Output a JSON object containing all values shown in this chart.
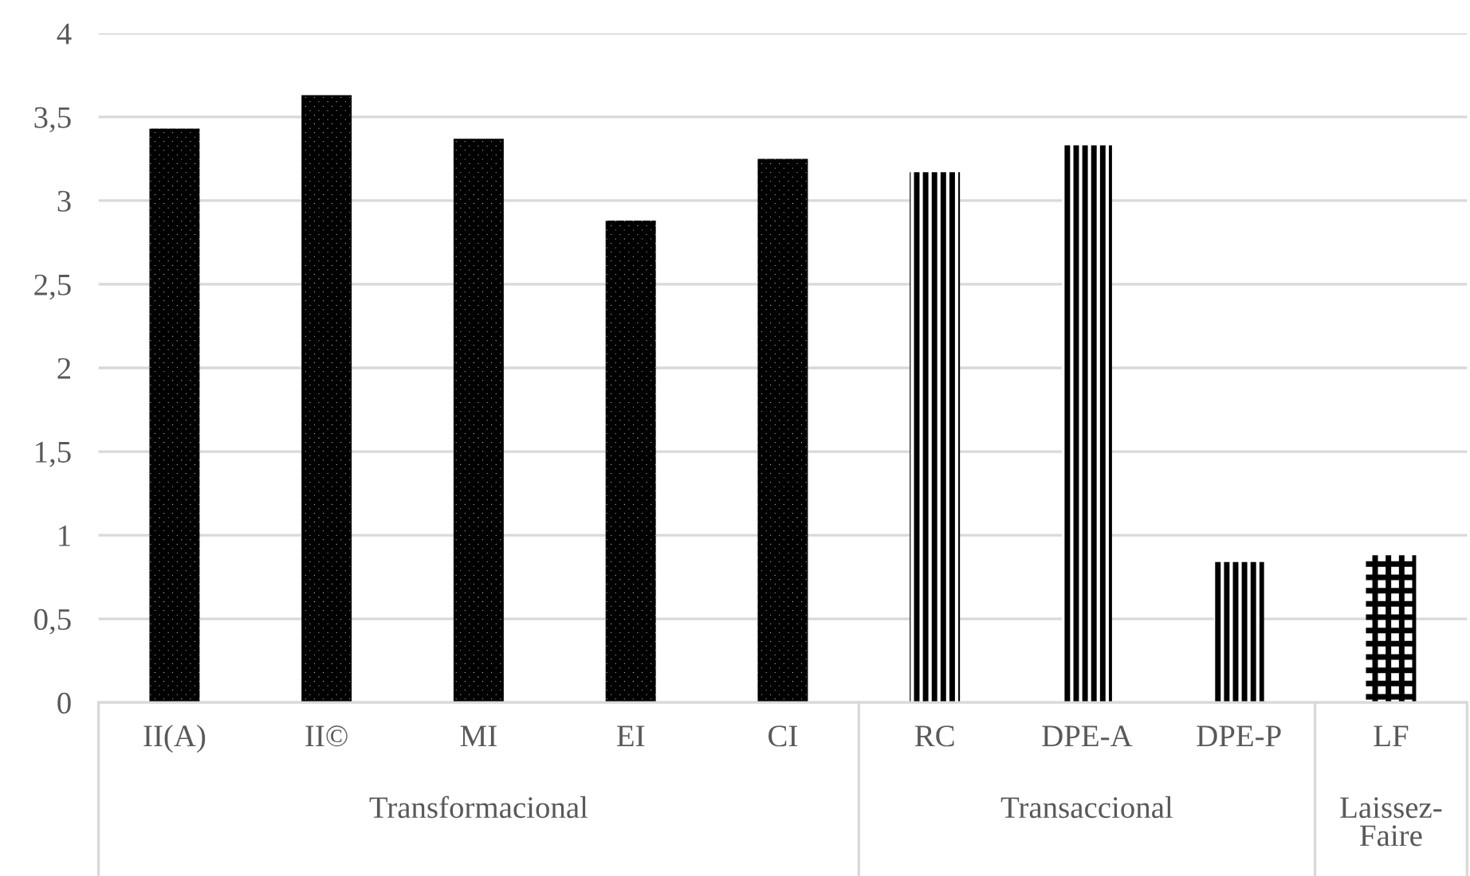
{
  "chart_data": {
    "type": "bar",
    "categories": [
      "II(A)",
      "II©",
      "MI",
      "EI",
      "CI",
      "RC",
      "DPE-A",
      "DPE-P",
      "LF"
    ],
    "series": [
      {
        "color": "#000000",
        "values": [
          3.43,
          3.63,
          3.37,
          2.88,
          3.25,
          null,
          null,
          null,
          null
        ]
      },
      {
        "color": "#000000",
        "values": [
          null,
          null,
          null,
          null,
          null,
          3.17,
          3.33,
          0.84,
          null
        ]
      },
      {
        "color": "#000000",
        "values": [
          null,
          null,
          null,
          null,
          null,
          null,
          null,
          null,
          0.88
        ]
      }
    ],
    "annotations": [
      "Transformacional",
      "Transaccional",
      "Laissez-\nFaire"
    ],
    "ylim": [
      0,
      4
    ],
    "yticks": [
      0,
      {
        "value": 0.5,
        "label": "0,5"
      },
      1,
      {
        "value": 1.5,
        "label": "1,5"
      },
      2,
      {
        "value": 2.5,
        "label": "2,5"
      },
      3,
      {
        "value": 3.5,
        "label": "3,5"
      },
      4
    ],
    "grid": "y",
    "legend": false
  }
}
